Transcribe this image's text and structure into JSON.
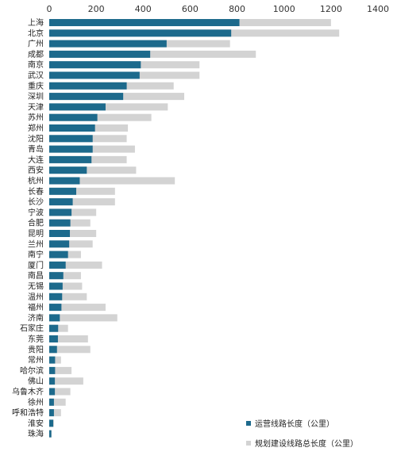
{
  "chart_data": {
    "type": "bar",
    "orientation": "horizontal",
    "stacked": "overlay",
    "title": "",
    "xlabel": "",
    "ylabel": "",
    "xlim": [
      0,
      1400
    ],
    "x_ticks": [
      0,
      200,
      400,
      600,
      800,
      1000,
      1200,
      1400
    ],
    "x_axis_position": "top",
    "grid": false,
    "legend_position": "bottom-right",
    "categories": [
      "上海",
      "北京",
      "广州",
      "成都",
      "南京",
      "武汉",
      "重庆",
      "深圳",
      "天津",
      "苏州",
      "郑州",
      "沈阳",
      "青岛",
      "大连",
      "西安",
      "杭州",
      "长春",
      "长沙",
      "宁波",
      "合肥",
      "昆明",
      "兰州",
      "南宁",
      "厦门",
      "南昌",
      "无锡",
      "温州",
      "福州",
      "济南",
      "石家庄",
      "东莞",
      "贵阳",
      "常州",
      "哈尔滨",
      "佛山",
      "乌鲁木齐",
      "徐州",
      "呼和浩特",
      "淮安",
      "珠海"
    ],
    "series": [
      {
        "name": "运营线路长度（公里）",
        "color": "#1d6a8c",
        "values": [
          810,
          775,
          500,
          430,
          390,
          385,
          330,
          315,
          240,
          205,
          195,
          185,
          185,
          180,
          160,
          130,
          115,
          100,
          95,
          90,
          88,
          85,
          80,
          70,
          60,
          57,
          55,
          52,
          45,
          38,
          37,
          33,
          25,
          25,
          24,
          24,
          20,
          20,
          17,
          9
        ]
      },
      {
        "name": "规划建设线路总长度（公里）",
        "color": "#d3d3d3",
        "values": [
          1200,
          1235,
          770,
          880,
          640,
          640,
          530,
          575,
          505,
          435,
          335,
          330,
          365,
          330,
          370,
          535,
          280,
          280,
          200,
          175,
          200,
          185,
          135,
          225,
          135,
          140,
          160,
          240,
          290,
          80,
          165,
          175,
          50,
          95,
          145,
          90,
          70,
          50,
          20,
          10
        ]
      }
    ],
    "legend": {
      "entries": [
        "运营线路长度（公里）",
        "规划建设线路总长度（公里）"
      ]
    }
  }
}
